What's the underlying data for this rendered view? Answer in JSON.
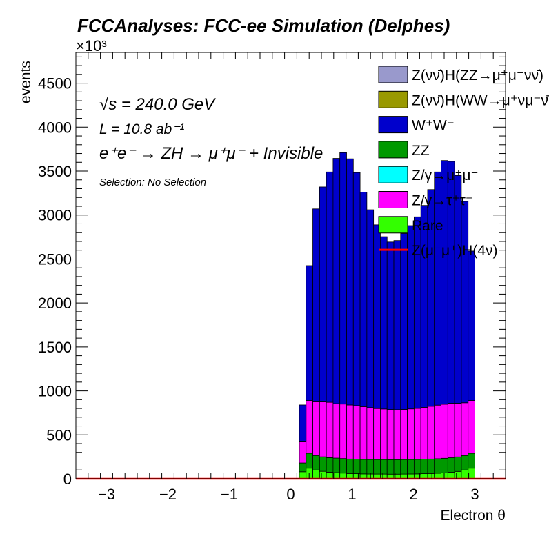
{
  "chart_data": {
    "type": "bar",
    "stacked": true,
    "histogram": true,
    "title": "FCCAnalyses: FCC-ee Simulation (Delphes)",
    "xlabel": "Electron θ",
    "ylabel": "events",
    "y_multiplier": "×10³",
    "xlim": [
      -3.5,
      3.5
    ],
    "ylim": [
      0,
      4850
    ],
    "x_ticks": [
      -3,
      -2,
      -1,
      0,
      1,
      2,
      3
    ],
    "y_ticks": [
      0,
      500,
      1000,
      1500,
      2000,
      2500,
      3000,
      3500,
      4000,
      4500
    ],
    "bin_edges": [
      0.14,
      0.25,
      0.36,
      0.47,
      0.58,
      0.69,
      0.8,
      0.91,
      1.02,
      1.13,
      1.24,
      1.35,
      1.46,
      1.57,
      1.68,
      1.79,
      1.9,
      2.01,
      2.12,
      2.23,
      2.34,
      2.45,
      2.56,
      2.67,
      2.78,
      2.89,
      3.0
    ],
    "annotations": {
      "energy": "√s = 240.0 GeV",
      "lumi": "L = 10.8 ab⁻¹",
      "process": "e⁺e⁻ → ZH → μ⁺μ⁻ + Invisible",
      "selection": "Selection: No Selection"
    },
    "legend_position": "top-right",
    "series": [
      {
        "name": "Rare",
        "color": "#33ff00",
        "style": "fill",
        "values": [
          80,
          120,
          100,
          85,
          75,
          70,
          65,
          60,
          58,
          56,
          55,
          54,
          54,
          53,
          53,
          54,
          55,
          56,
          58,
          60,
          63,
          68,
          74,
          84,
          100,
          120
        ]
      },
      {
        "name": "ZZ",
        "color": "#009900",
        "style": "fill",
        "values": [
          100,
          170,
          165,
          165,
          165,
          165,
          165,
          165,
          165,
          165,
          165,
          165,
          165,
          165,
          165,
          165,
          165,
          165,
          165,
          165,
          165,
          165,
          165,
          165,
          165,
          170
        ]
      },
      {
        "name": "Z/γ→τ⁺τ⁻",
        "color": "#ff00ff",
        "style": "fill",
        "values": [
          240,
          600,
          610,
          625,
          630,
          620,
          620,
          615,
          610,
          600,
          590,
          580,
          575,
          570,
          568,
          570,
          575,
          580,
          590,
          600,
          610,
          615,
          620,
          610,
          600,
          600
        ]
      },
      {
        "name": "Z/γ→μ⁺μ⁻",
        "color": "#00ffff",
        "style": "fill",
        "values": [
          0,
          0,
          0,
          0,
          0,
          0,
          0,
          0,
          0,
          0,
          0,
          0,
          0,
          0,
          0,
          0,
          0,
          0,
          0,
          0,
          0,
          0,
          0,
          0,
          0,
          0
        ]
      },
      {
        "name": "W⁺W⁻",
        "color": "#0000cc",
        "style": "fill",
        "values": [
          420,
          1535,
          2195,
          2445,
          2620,
          2790,
          2860,
          2800,
          2650,
          2440,
          2250,
          2090,
          1960,
          1905,
          1924,
          2001,
          2085,
          2179,
          2297,
          2465,
          2652,
          2772,
          2751,
          2591,
          2290,
          1700
        ]
      },
      {
        "name": "Z(νν̄)H(WW→μ⁺νμ⁻ν̄)",
        "color": "#999900",
        "style": "fill",
        "values": [
          0,
          0,
          0,
          0,
          0,
          0,
          0,
          0,
          0,
          0,
          0,
          0,
          0,
          0,
          0,
          0,
          0,
          0,
          0,
          0,
          0,
          0,
          0,
          0,
          0,
          0
        ]
      },
      {
        "name": "Z(νν̄)H(ZZ→μ⁺μ⁻νν̄)",
        "color": "#9999cc",
        "style": "fill",
        "values": [
          0,
          0,
          0,
          0,
          0,
          0,
          0,
          0,
          0,
          0,
          0,
          0,
          0,
          0,
          0,
          0,
          0,
          0,
          0,
          0,
          0,
          0,
          0,
          0,
          0,
          0
        ]
      },
      {
        "name": "Z(μ⁻μ⁺)H(4ν)",
        "color": "#ff0000",
        "style": "line",
        "values": [
          0,
          0,
          0,
          0,
          0,
          0,
          0,
          0,
          0,
          0,
          0,
          0,
          0,
          0,
          0,
          0,
          0,
          0,
          0,
          0,
          0,
          0,
          0,
          0,
          0,
          0
        ]
      }
    ],
    "legend_order": [
      "Z(νν̄)H(ZZ→μ⁺μ⁻νν̄)",
      "Z(νν̄)H(WW→μ⁺νμ⁻ν̄)",
      "W⁺W⁻",
      "ZZ",
      "Z/γ→μ⁺μ⁻",
      "Z/γ→τ⁺τ⁻",
      "Rare",
      "Z(μ⁻μ⁺)H(4ν)"
    ]
  }
}
